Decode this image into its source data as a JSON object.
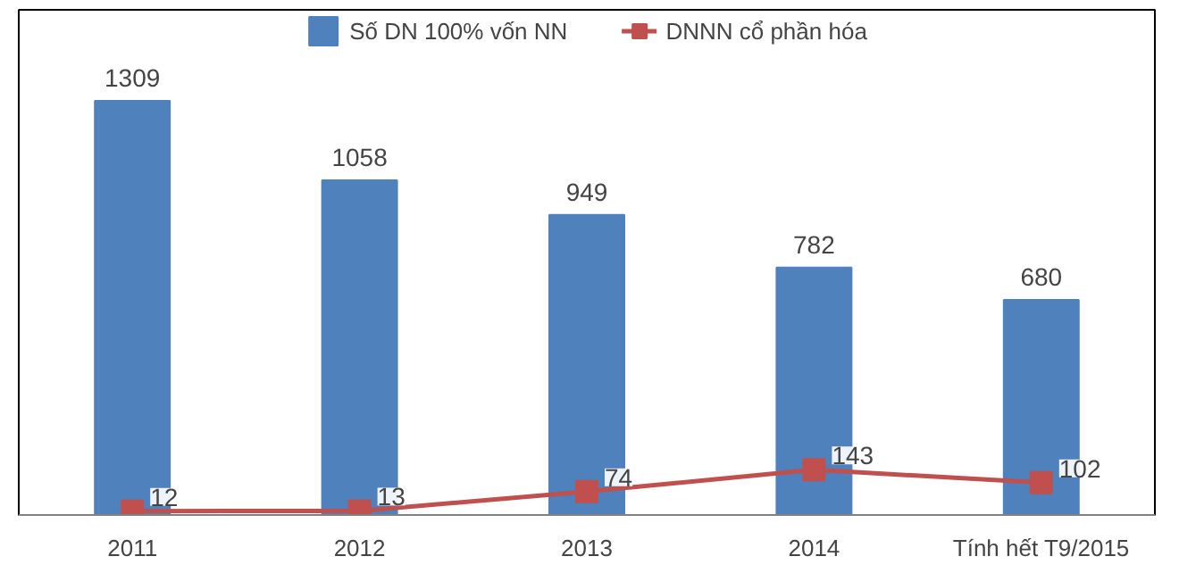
{
  "chart_data": {
    "type": "bar",
    "categories": [
      "2011",
      "2012",
      "2013",
      "2014",
      "Tính hết T9/2015"
    ],
    "series": [
      {
        "name": "Số DN 100% vốn NN",
        "color": "#4f81bd",
        "values": [
          1309,
          1058,
          949,
          782,
          680
        ]
      },
      {
        "name": "DNNN cổ phần hóa",
        "color": "#c0504d",
        "type": "line",
        "marker": "square",
        "values": [
          12,
          13,
          74,
          143,
          102
        ]
      }
    ],
    "data_labels": true,
    "tick_labels": "x",
    "grid": false,
    "legend": "top"
  }
}
